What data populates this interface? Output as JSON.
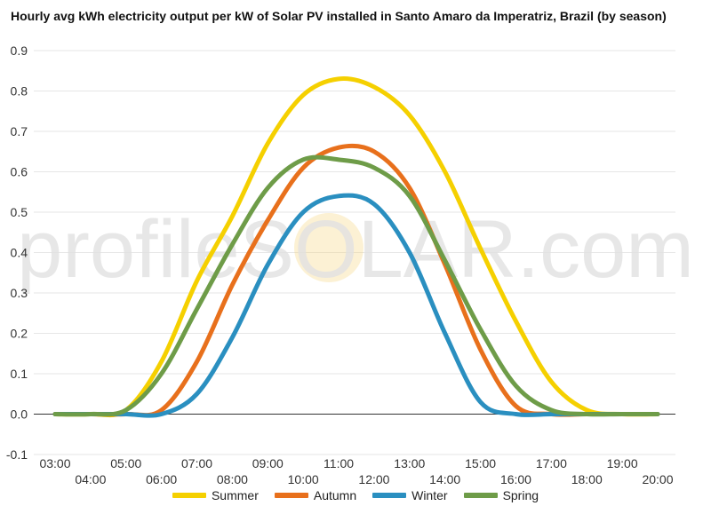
{
  "chart_data": {
    "type": "line",
    "title": "Hourly avg kWh electricity output per kW of Solar PV installed in Santo Amaro da Imperatriz, Brazil (by season)",
    "watermark": "profileSOLAR.com",
    "xlabel": "",
    "ylabel": "",
    "ylim": [
      -0.1,
      0.9
    ],
    "yticks": [
      "-0.1",
      "0.0",
      "0.1",
      "0.2",
      "0.3",
      "0.4",
      "0.5",
      "0.6",
      "0.7",
      "0.8",
      "0.9"
    ],
    "categories": [
      "03:00",
      "04:00",
      "05:00",
      "06:00",
      "07:00",
      "08:00",
      "09:00",
      "10:00",
      "11:00",
      "12:00",
      "13:00",
      "14:00",
      "15:00",
      "16:00",
      "17:00",
      "18:00",
      "19:00",
      "20:00"
    ],
    "grid": true,
    "legend_position": "bottom",
    "series": [
      {
        "name": "Summer",
        "color": "#f5d000",
        "values": [
          0.0,
          0.0,
          0.01,
          0.13,
          0.33,
          0.49,
          0.67,
          0.79,
          0.83,
          0.81,
          0.74,
          0.6,
          0.41,
          0.23,
          0.08,
          0.01,
          0.0,
          0.0
        ]
      },
      {
        "name": "Autumn",
        "color": "#e8701c",
        "values": [
          0.0,
          0.0,
          0.0,
          0.01,
          0.13,
          0.32,
          0.48,
          0.61,
          0.66,
          0.65,
          0.56,
          0.37,
          0.16,
          0.02,
          0.0,
          0.0,
          0.0,
          0.0
        ]
      },
      {
        "name": "Winter",
        "color": "#2a8fc0",
        "values": [
          0.0,
          0.0,
          0.0,
          0.0,
          0.05,
          0.19,
          0.37,
          0.5,
          0.54,
          0.52,
          0.4,
          0.2,
          0.03,
          0.0,
          0.0,
          0.0,
          0.0,
          0.0
        ]
      },
      {
        "name": "Spring",
        "color": "#6e9c48",
        "values": [
          0.0,
          0.0,
          0.01,
          0.1,
          0.26,
          0.42,
          0.56,
          0.63,
          0.63,
          0.61,
          0.54,
          0.38,
          0.21,
          0.07,
          0.01,
          0.0,
          0.0,
          0.0
        ]
      }
    ]
  }
}
